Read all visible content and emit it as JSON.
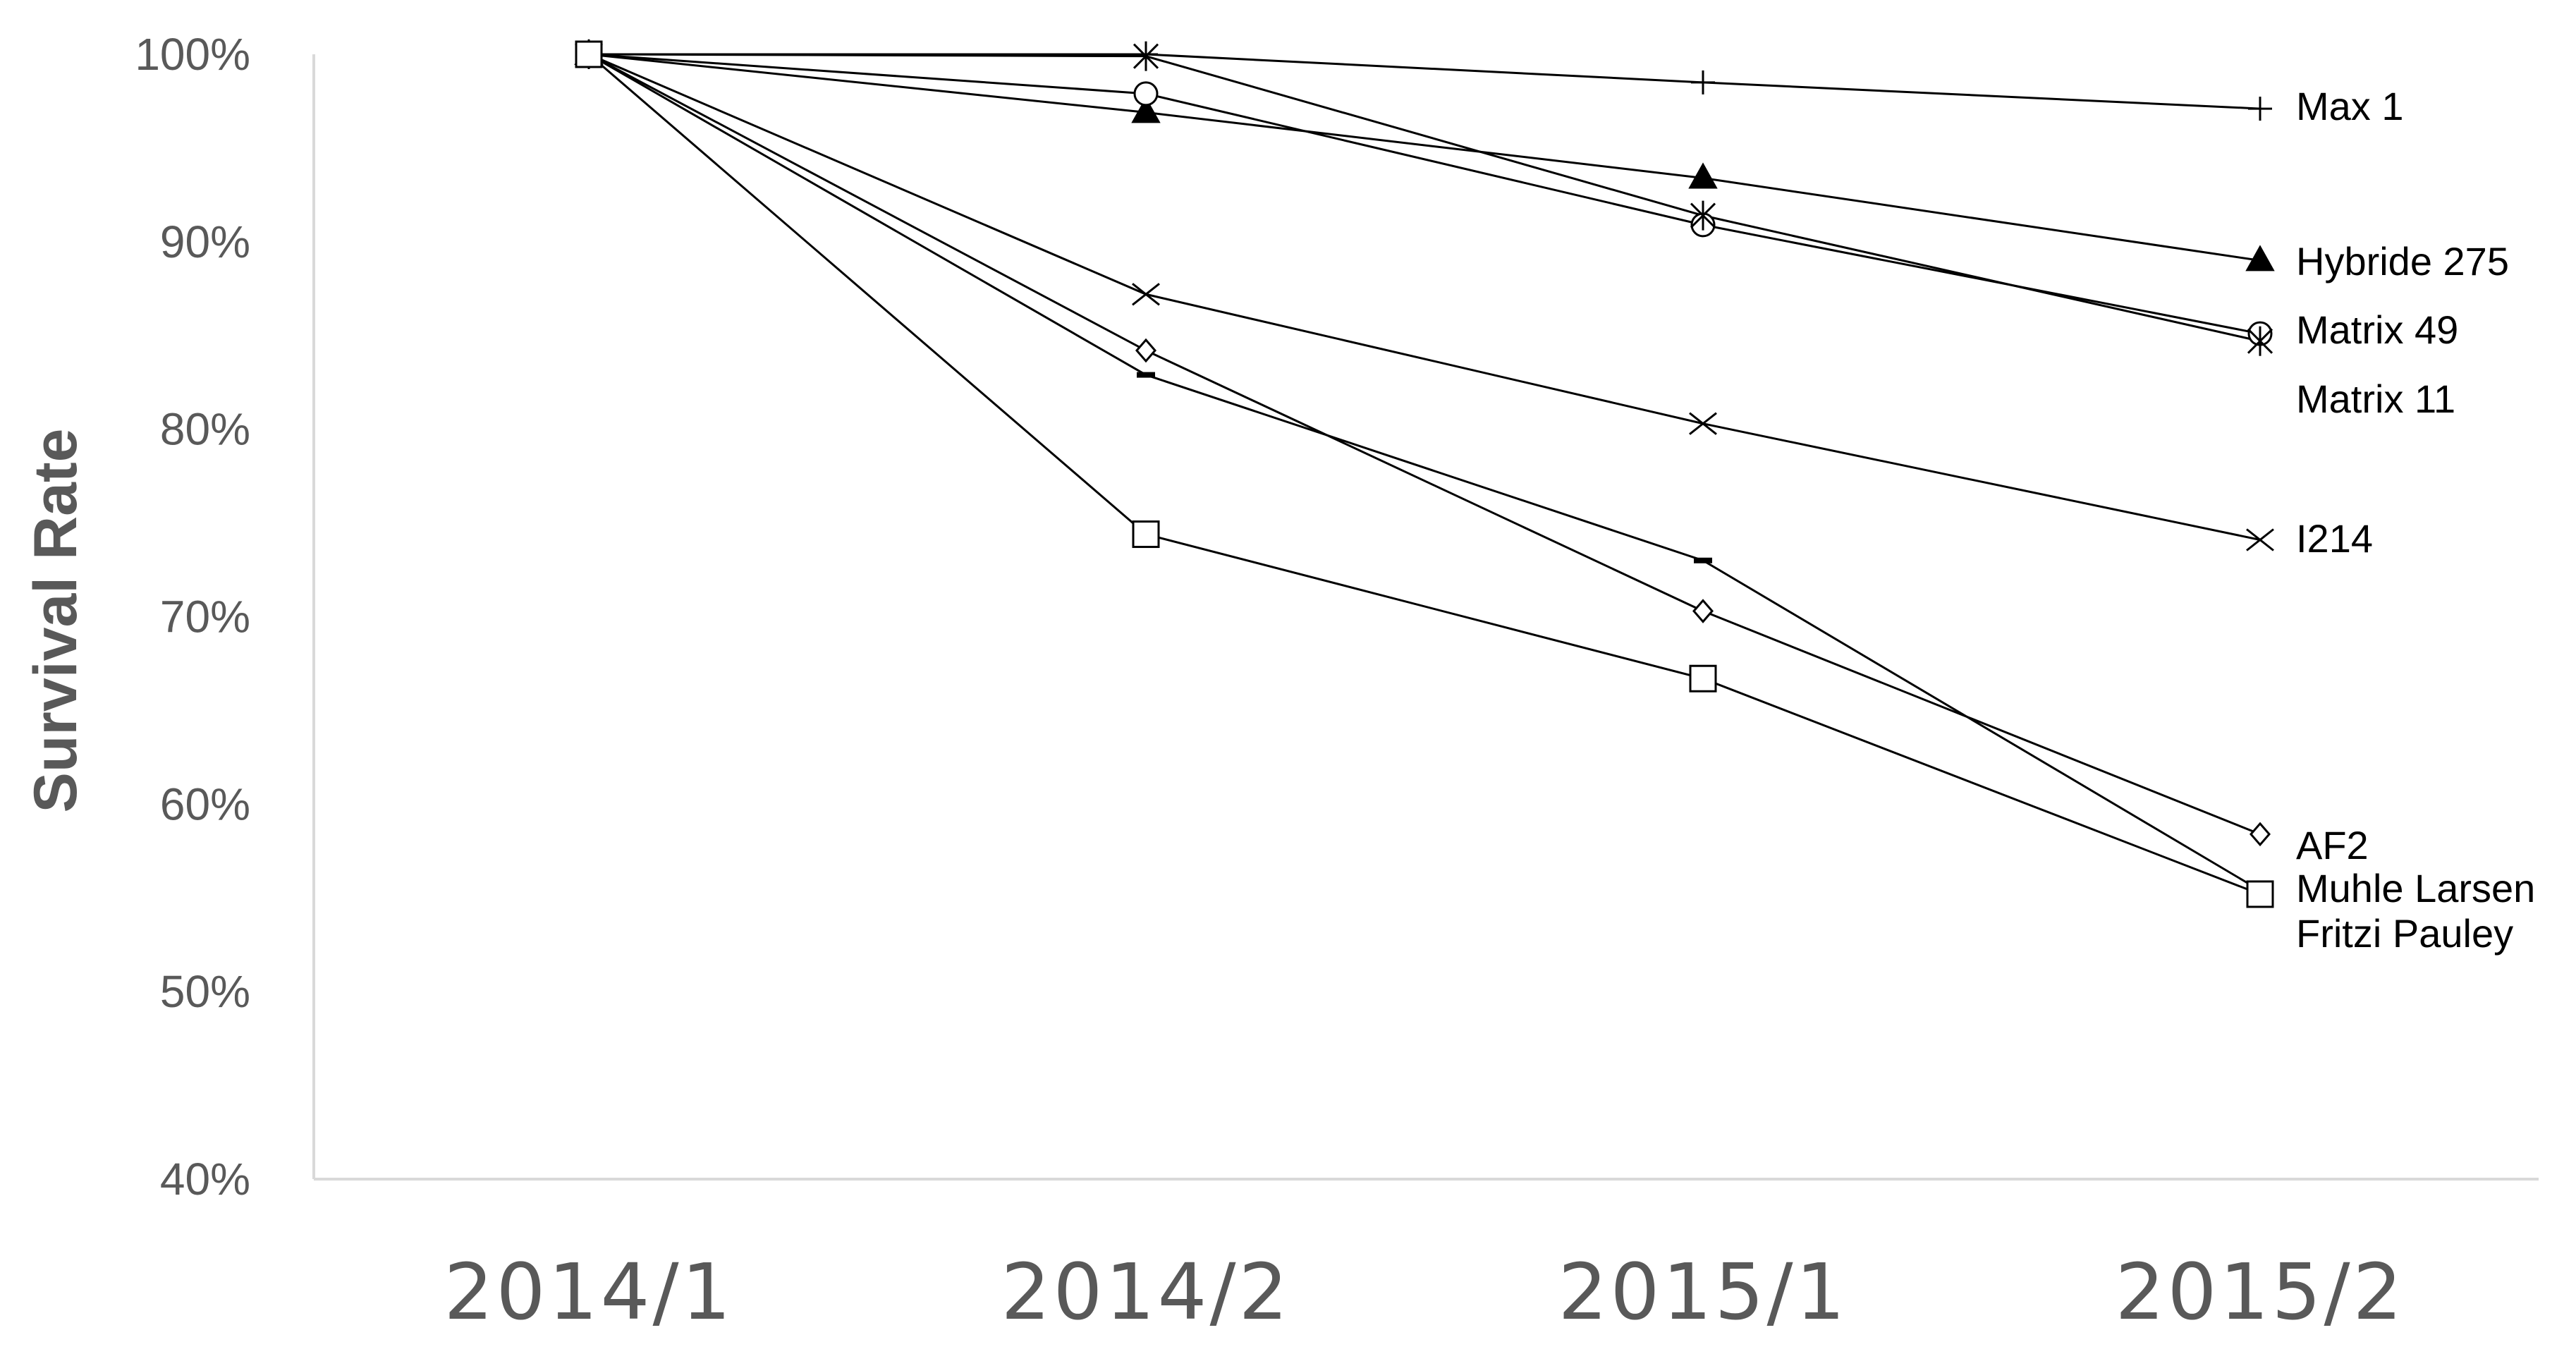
{
  "chart_data": {
    "type": "line",
    "ylabel": "Survival Rate",
    "xlabel": "",
    "title": "",
    "categories": [
      "2014/1",
      "2014/2",
      "2015/1",
      "2015/2"
    ],
    "ylim": [
      40,
      100
    ],
    "yticks": [
      40,
      50,
      60,
      70,
      80,
      90,
      100
    ],
    "ytick_labels": [
      "40%",
      "50%",
      "60%",
      "70%",
      "80%",
      "90%",
      "100%"
    ],
    "grid": false,
    "legend": "labels at line ends (right)",
    "series": [
      {
        "name": "Max 1",
        "marker": "plus",
        "values": [
          100,
          100,
          98.5,
          97.1
        ]
      },
      {
        "name": "Hybride 275",
        "marker": "triangle-filled",
        "values": [
          100,
          96.9,
          93.4,
          89.0
        ]
      },
      {
        "name": "Matrix 49",
        "marker": "circle",
        "values": [
          100,
          97.9,
          90.9,
          85.1
        ]
      },
      {
        "name": "Matrix 11",
        "marker": "asterisk",
        "values": [
          100,
          99.9,
          91.4,
          84.7
        ]
      },
      {
        "name": "I214",
        "marker": "x",
        "values": [
          100,
          87.2,
          80.3,
          74.1
        ]
      },
      {
        "name": "AF2",
        "marker": "diamond",
        "values": [
          100,
          84.2,
          70.3,
          58.4
        ]
      },
      {
        "name": "Muhle Larsen",
        "marker": "dash",
        "values": [
          100,
          82.9,
          73.0,
          55.4
        ]
      },
      {
        "name": "Fritzi Pauley",
        "marker": "square",
        "values": [
          100,
          74.4,
          66.7,
          55.2
        ]
      }
    ]
  }
}
